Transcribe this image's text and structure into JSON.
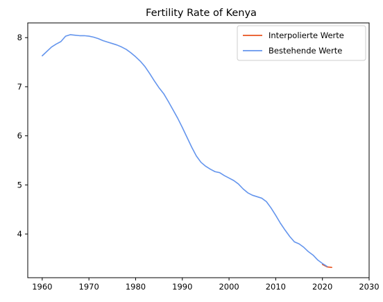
{
  "chart_data": {
    "type": "line",
    "title": "Fertility Rate of Kenya",
    "xlabel": "",
    "ylabel": "",
    "xlim": [
      1956.9,
      2030
    ],
    "ylim": [
      3.11,
      8.3
    ],
    "x_ticks": [
      1960,
      1970,
      1980,
      1990,
      2000,
      2010,
      2020,
      2030
    ],
    "y_ticks": [
      4,
      5,
      6,
      7,
      8
    ],
    "grid": false,
    "legend_position": "top-right",
    "series": [
      {
        "name": "Interpolierte Werte",
        "color": "#e8521e",
        "x": [
          2020,
          2021,
          2022
        ],
        "y": [
          3.38,
          3.33,
          3.32
        ]
      },
      {
        "name": "Bestehende Werte",
        "color": "#6495ed",
        "x": [
          1960,
          1961,
          1962,
          1963,
          1964,
          1965,
          1966,
          1967,
          1968,
          1969,
          1970,
          1971,
          1972,
          1973,
          1974,
          1975,
          1976,
          1977,
          1978,
          1979,
          1980,
          1981,
          1982,
          1983,
          1984,
          1985,
          1986,
          1987,
          1988,
          1989,
          1990,
          1991,
          1992,
          1993,
          1994,
          1995,
          1996,
          1997,
          1998,
          1999,
          2000,
          2001,
          2002,
          2003,
          2004,
          2005,
          2006,
          2007,
          2008,
          2009,
          2010,
          2011,
          2012,
          2013,
          2014,
          2015,
          2016,
          2017,
          2018,
          2019,
          2020,
          2021
        ],
        "y": [
          7.63,
          7.72,
          7.81,
          7.87,
          7.92,
          8.03,
          8.06,
          8.05,
          8.04,
          8.04,
          8.03,
          8.01,
          7.98,
          7.94,
          7.91,
          7.88,
          7.85,
          7.81,
          7.76,
          7.69,
          7.61,
          7.52,
          7.41,
          7.27,
          7.12,
          6.98,
          6.86,
          6.7,
          6.53,
          6.36,
          6.17,
          5.97,
          5.77,
          5.59,
          5.46,
          5.38,
          5.32,
          5.27,
          5.25,
          5.19,
          5.14,
          5.09,
          5.02,
          4.92,
          4.84,
          4.79,
          4.76,
          4.73,
          4.66,
          4.53,
          4.38,
          4.22,
          4.08,
          3.95,
          3.84,
          3.8,
          3.73,
          3.64,
          3.57,
          3.47,
          3.4,
          3.34
        ]
      }
    ]
  }
}
